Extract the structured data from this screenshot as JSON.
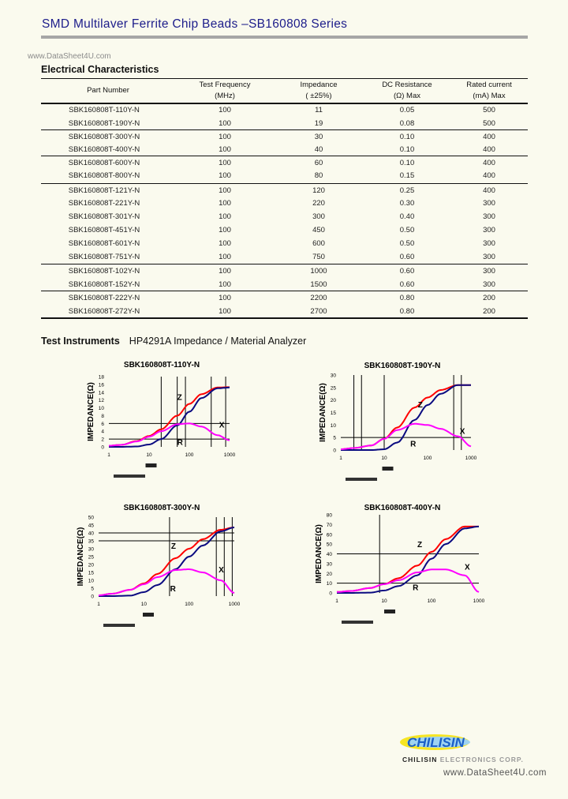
{
  "header": {
    "title": "SMD Multilaver Ferrite Chip Beads –SB160808 Series",
    "watermark": "www.DataSheet4U.com"
  },
  "electrical": {
    "heading": "Electrical Characteristics",
    "columns": [
      {
        "line1": "Part Number",
        "line2": ""
      },
      {
        "line1": "Test Frequency",
        "line2": "(MHz)"
      },
      {
        "line1": "Impedance",
        "line2": "(    ±25%)"
      },
      {
        "line1": "DC Resistance",
        "line2": "(Ω) Max"
      },
      {
        "line1": "Rated current",
        "line2": "(mA) Max"
      }
    ],
    "rows": [
      [
        "SBK160808T-110Y-N",
        "100",
        "11",
        "0.05",
        "500"
      ],
      [
        "SBK160808T-190Y-N",
        "100",
        "19",
        "0.08",
        "500"
      ],
      [
        "SBK160808T-300Y-N",
        "100",
        "30",
        "0.10",
        "400"
      ],
      [
        "SBK160808T-400Y-N",
        "100",
        "40",
        "0.10",
        "400"
      ],
      [
        "SBK160808T-600Y-N",
        "100",
        "60",
        "0.10",
        "400"
      ],
      [
        "SBK160808T-800Y-N",
        "100",
        "80",
        "0.15",
        "400"
      ],
      [
        "SBK160808T-121Y-N",
        "100",
        "120",
        "0.25",
        "400"
      ],
      [
        "SBK160808T-221Y-N",
        "100",
        "220",
        "0.30",
        "300"
      ],
      [
        "SBK160808T-301Y-N",
        "100",
        "300",
        "0.40",
        "300"
      ],
      [
        "SBK160808T-451Y-N",
        "100",
        "450",
        "0.50",
        "300"
      ],
      [
        "SBK160808T-601Y-N",
        "100",
        "600",
        "0.50",
        "300"
      ],
      [
        "SBK160808T-751Y-N",
        "100",
        "750",
        "0.60",
        "300"
      ],
      [
        "SBK160808T-102Y-N",
        "100",
        "1000",
        "0.60",
        "300"
      ],
      [
        "SBK160808T-152Y-N",
        "100",
        "1500",
        "0.60",
        "300"
      ],
      [
        "SBK160808T-222Y-N",
        "100",
        "2200",
        "0.80",
        "200"
      ],
      [
        "SBK160808T-272Y-N",
        "100",
        "2700",
        "0.80",
        "200"
      ]
    ]
  },
  "instruments": {
    "label": "Test Instruments",
    "value": "HP4291A Impedance / Material Analyzer"
  },
  "chart_data": [
    {
      "type": "line",
      "title": "SBK160808T-110Y-N",
      "ylabel": "IMPEDANCE(Ω)",
      "xscale": "log",
      "xlim": [
        1,
        1000
      ],
      "ylim": [
        0,
        18
      ],
      "yticks": [
        0,
        2,
        4,
        6,
        8,
        10,
        12,
        14,
        16,
        18
      ],
      "xticks": [
        "1",
        "10",
        "100",
        "1000"
      ],
      "x": [
        1,
        2,
        5,
        10,
        20,
        50,
        100,
        200,
        500,
        1000
      ],
      "series": [
        {
          "name": "Z",
          "color": "#ff0000",
          "values": [
            0.3,
            0.5,
            1.5,
            2.8,
            4.5,
            8,
            11,
            13.5,
            15.2,
            15.3
          ]
        },
        {
          "name": "R",
          "color": "#0a0a80",
          "values": [
            0,
            0,
            0.1,
            0.6,
            2,
            5.5,
            9,
            12.5,
            15,
            15.2
          ]
        },
        {
          "name": "X",
          "color": "#ff00ff",
          "values": [
            0.3,
            0.5,
            1.4,
            2.6,
            4,
            5.8,
            6,
            5.2,
            3,
            1.7
          ]
        }
      ],
      "label_positions": {
        "Z": [
          50,
          12
        ],
        "R": [
          50,
          0.5
        ],
        "X": [
          550,
          5
        ]
      },
      "vlines": [
        20,
        50,
        80,
        350,
        800
      ],
      "hlines": [
        6,
        2
      ]
    },
    {
      "type": "line",
      "title": "SBK160808T-190Y-N",
      "ylabel": "IMPEDANCE(Ω)",
      "xscale": "log",
      "xlim": [
        1,
        1000
      ],
      "ylim": [
        0,
        30
      ],
      "yticks": [
        0,
        5,
        10,
        15,
        20,
        25,
        30
      ],
      "xticks": [
        "1",
        "10",
        "100",
        "1000"
      ],
      "x": [
        1,
        2,
        5,
        10,
        20,
        50,
        100,
        200,
        500,
        1000
      ],
      "series": [
        {
          "name": "Z",
          "color": "#ff0000",
          "values": [
            0.3,
            0.8,
            1.8,
            4.5,
            9,
            17,
            21,
            24,
            26,
            26
          ]
        },
        {
          "name": "R",
          "color": "#0a0a80",
          "values": [
            0,
            0,
            0,
            0.3,
            3,
            12,
            18,
            22.5,
            26,
            26
          ]
        },
        {
          "name": "X",
          "color": "#ff00ff",
          "values": [
            0.3,
            0.8,
            1.8,
            4.5,
            8,
            10.5,
            10,
            8.5,
            5.5,
            1.5
          ]
        }
      ],
      "label_positions": {
        "Z": [
          60,
          17
        ],
        "R": [
          40,
          1.5
        ],
        "X": [
          550,
          6.5
        ]
      },
      "vlines": [
        2,
        3,
        10,
        400,
        600
      ],
      "hlines": [
        5
      ]
    },
    {
      "type": "line",
      "title": "SBK160808T-300Y-N",
      "ylabel": "IMPEDANCE(Ω)",
      "xscale": "log",
      "xlim": [
        1,
        1000
      ],
      "ylim": [
        0,
        50
      ],
      "yticks": [
        0,
        5,
        10,
        15,
        20,
        25,
        30,
        35,
        40,
        45,
        50
      ],
      "xticks": [
        "1",
        "10",
        "100",
        "1000"
      ],
      "x": [
        1,
        2,
        5,
        10,
        20,
        50,
        100,
        200,
        500,
        1000
      ],
      "series": [
        {
          "name": "Z",
          "color": "#ff0000",
          "values": [
            0.5,
            1.5,
            4,
            8,
            14,
            24,
            30,
            36,
            42,
            43.5
          ]
        },
        {
          "name": "R",
          "color": "#0a0a80",
          "values": [
            0,
            0,
            0.3,
            2.5,
            7,
            17,
            25,
            32,
            41,
            43.5
          ]
        },
        {
          "name": "X",
          "color": "#ff00ff",
          "values": [
            0.5,
            1.5,
            4,
            7.5,
            12,
            16.5,
            17,
            15,
            10,
            2
          ]
        }
      ],
      "label_positions": {
        "Z": [
          40,
          30
        ],
        "R": [
          38,
          3
        ],
        "X": [
          450,
          15
        ]
      },
      "vlines": [
        37,
        400,
        600,
        900
      ],
      "hlines": [
        40,
        35
      ]
    },
    {
      "type": "line",
      "title": "SBK160808T-400Y-N",
      "ylabel": "IMPEDANCE(Ω)",
      "xscale": "log",
      "xlim": [
        1,
        1000
      ],
      "ylim": [
        0,
        80
      ],
      "yticks": [
        0,
        10,
        20,
        30,
        40,
        50,
        60,
        70,
        80
      ],
      "xticks": [
        "1",
        "10",
        "100",
        "1000"
      ],
      "x": [
        1,
        2,
        5,
        10,
        20,
        50,
        100,
        200,
        500,
        1000
      ],
      "series": [
        {
          "name": "Z",
          "color": "#ff0000",
          "values": [
            1,
            2,
            5,
            9,
            15,
            28,
            42,
            55,
            68,
            68
          ]
        },
        {
          "name": "R",
          "color": "#0a0a80",
          "values": [
            0,
            0,
            0.3,
            2.5,
            7,
            18,
            35,
            50,
            66,
            68
          ]
        },
        {
          "name": "X",
          "color": "#ff00ff",
          "values": [
            1,
            2,
            5,
            9,
            13,
            21,
            24,
            24,
            18,
            1
          ]
        }
      ],
      "label_positions": {
        "Z": [
          50,
          47
        ],
        "R": [
          40,
          3
        ],
        "X": [
          500,
          24
        ]
      },
      "vlines": [
        8
      ],
      "hlines": [
        40,
        10
      ]
    }
  ],
  "footer": {
    "logo_text": "CHILISIN",
    "company_a": "CHILISIN",
    "company_b": "ELECTRONICS CORP.",
    "watermark": "www.DataSheet4U.com",
    "brand_blue": "#1a5fc8",
    "brand_yellow": "#f5e000"
  }
}
